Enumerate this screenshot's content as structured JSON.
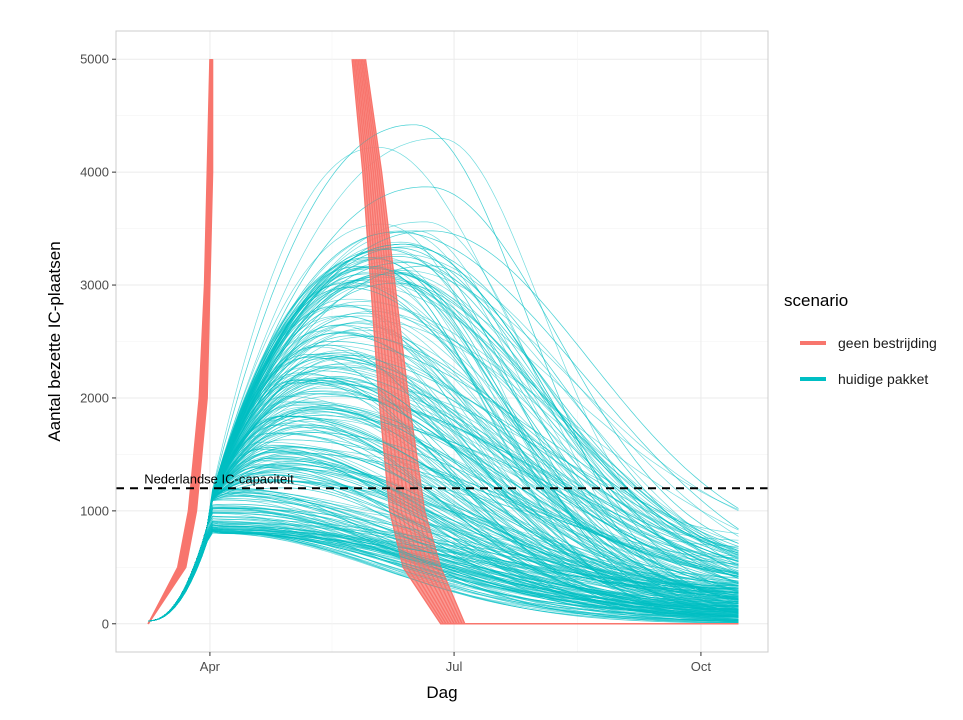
{
  "chart_data": {
    "type": "line",
    "title": "",
    "xlabel": "Dag",
    "ylabel": "Aantal bezette IC-plaatsen",
    "x_ticks": [
      {
        "label": "Apr",
        "day": 0
      },
      {
        "label": "Jul",
        "day": 91
      },
      {
        "label": "Oct",
        "day": 183
      }
    ],
    "xlim": [
      -35,
      208
    ],
    "ylim": [
      -250,
      5250
    ],
    "y_ticks": [
      0,
      1000,
      2000,
      3000,
      4000,
      5000
    ],
    "capacity_line": {
      "value": 1200,
      "label": "Nederlandse IC-capaciteit",
      "style": "dashed"
    },
    "legend": {
      "title": "scenario",
      "position": "right",
      "entries": [
        {
          "name": "geen bestrijding",
          "color": "#F8766D"
        },
        {
          "name": "huidige pakket",
          "color": "#00BFC4"
        }
      ]
    },
    "series": [
      {
        "name": "geen bestrijding",
        "color": "#F8766D",
        "x_range": [
          -23,
          197
        ],
        "rising_edge": {
          "y": [
            0,
            500,
            1000,
            2000,
            3000,
            4000,
            5000
          ],
          "x_first_run": [
            -23,
            -12,
            -8,
            -4,
            -2,
            -1,
            0
          ],
          "x_last_run": [
            -23,
            -9,
            -5,
            -1,
            0,
            1,
            1
          ]
        },
        "peak": {
          "y": 5000,
          "x_first_run": 53,
          "x_last_run": 58
        },
        "falling_edge": {
          "y": [
            5000,
            4000,
            2000,
            1000,
            500,
            0
          ],
          "x_first_run": [
            53,
            57,
            63,
            67,
            72,
            86
          ],
          "x_last_run": [
            58,
            64,
            74,
            80,
            86,
            95
          ]
        },
        "runs": 10
      },
      {
        "name": "huidige pakket",
        "color": "#00BFC4",
        "x_range": [
          -23,
          197
        ],
        "runs": 300,
        "peak_value_range": [
          800,
          4420
        ],
        "peak_day_range": [
          0,
          90
        ],
        "end_value_range": [
          0,
          820
        ],
        "notable_peaks": [
          4420,
          4300,
          4220,
          3870,
          3560,
          3540,
          3480,
          3380,
          3240,
          3170
        ]
      }
    ]
  }
}
